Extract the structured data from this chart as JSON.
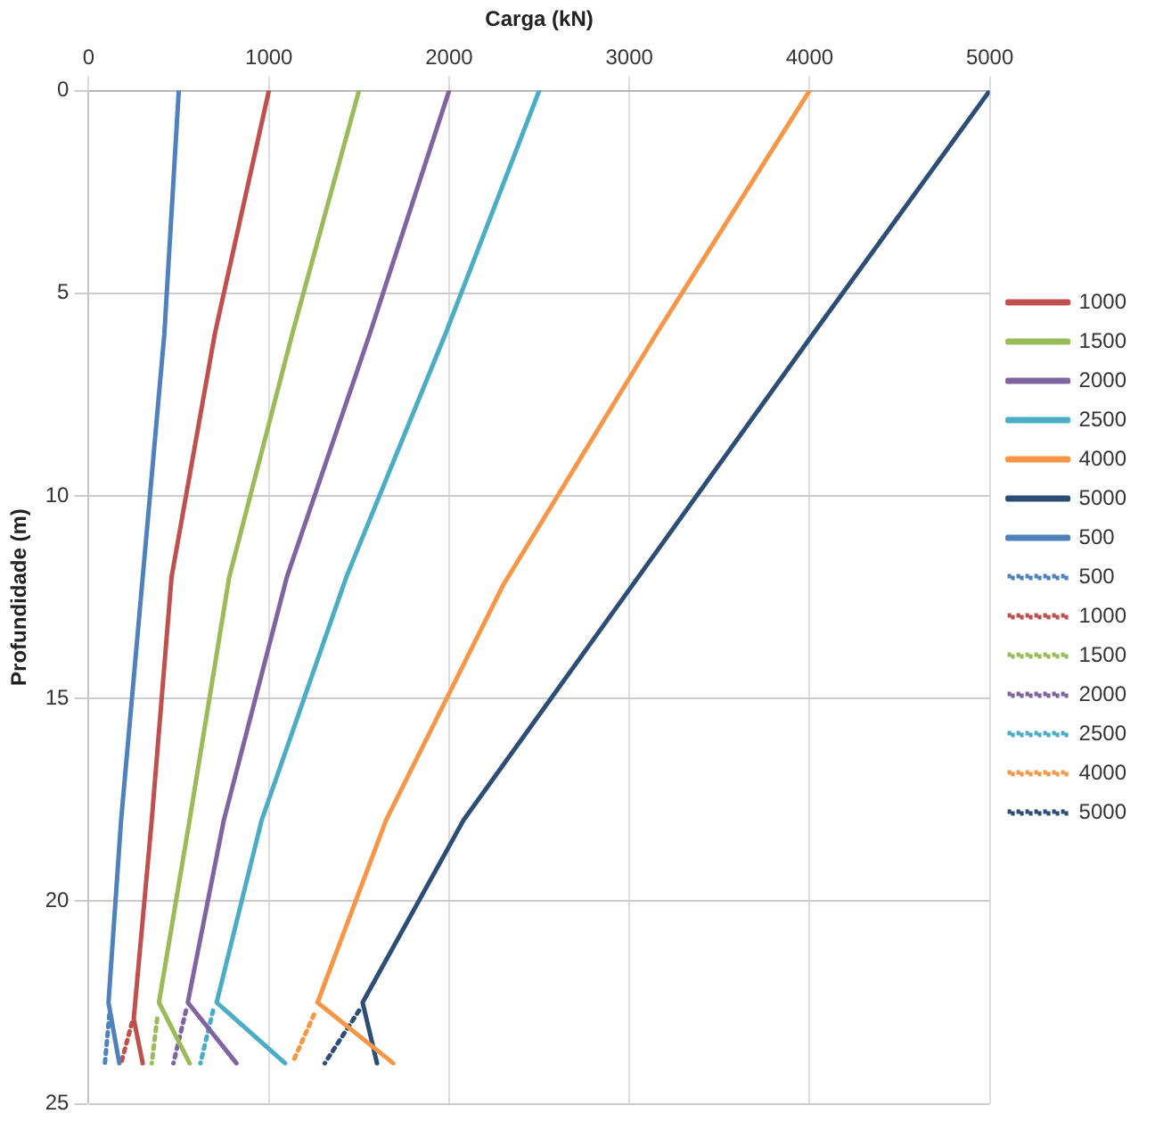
{
  "chart_data": {
    "type": "line",
    "xlabel": "Carga (kN)",
    "ylabel": "Profundidade (m)",
    "xlim": [
      0,
      5000
    ],
    "xticks": [
      0,
      1000,
      2000,
      3000,
      4000,
      5000
    ],
    "ylim": [
      25,
      0
    ],
    "yticks": [
      0,
      5,
      10,
      15,
      20,
      25
    ],
    "grid": true,
    "legend": "right",
    "marker": "none",
    "series": [
      {
        "name": "1000",
        "color": "#c0504d",
        "line_style": "solid",
        "x": [
          1000,
          700,
          460,
          350,
          250,
          300
        ],
        "values": [
          0,
          6,
          12,
          18,
          22.9,
          24
        ]
      },
      {
        "name": "1500",
        "color": "#9bbb59",
        "line_style": "solid",
        "x": [
          1500,
          1130,
          780,
          560,
          390,
          560
        ],
        "values": [
          0,
          6,
          12,
          18,
          22.5,
          24
        ]
      },
      {
        "name": "2000",
        "color": "#8064a2",
        "line_style": "solid",
        "x": [
          2000,
          1560,
          1100,
          750,
          550,
          820
        ],
        "values": [
          0,
          6,
          12,
          18,
          22.5,
          24
        ]
      },
      {
        "name": "2500",
        "color": "#4bacc6",
        "line_style": "solid",
        "x": [
          2500,
          1980,
          1430,
          960,
          710,
          1090
        ],
        "values": [
          0,
          6,
          12,
          18,
          22.5,
          24
        ]
      },
      {
        "name": "4000",
        "color": "#f79646",
        "line_style": "solid",
        "x": [
          4000,
          3150,
          2300,
          1650,
          1270,
          1690
        ],
        "values": [
          0,
          6,
          12.2,
          18,
          22.5,
          24
        ]
      },
      {
        "name": "5000",
        "color": "#2c4d75",
        "line_style": "solid",
        "x": [
          5000,
          4020,
          3050,
          2080,
          1520,
          1600
        ],
        "values": [
          0,
          6,
          12,
          18,
          22.5,
          24
        ]
      },
      {
        "name": "500",
        "color": "#4f81bd",
        "line_style": "solid",
        "x": [
          500,
          420,
          300,
          180,
          110,
          170
        ],
        "values": [
          0,
          6,
          12,
          18,
          22.5,
          24
        ]
      },
      {
        "name": "500",
        "color": "#4f81bd",
        "line_style": "dotted",
        "x": [
          115,
          90
        ],
        "values": [
          22.8,
          24
        ]
      },
      {
        "name": "1000",
        "color": "#c0504d",
        "line_style": "dotted",
        "x": [
          240,
          180
        ],
        "values": [
          23,
          24
        ]
      },
      {
        "name": "1500",
        "color": "#9bbb59",
        "line_style": "dotted",
        "x": [
          380,
          350
        ],
        "values": [
          22.9,
          24
        ]
      },
      {
        "name": "2000",
        "color": "#8064a2",
        "line_style": "dotted",
        "x": [
          540,
          470
        ],
        "values": [
          22.7,
          24
        ]
      },
      {
        "name": "2500",
        "color": "#4bacc6",
        "line_style": "dotted",
        "x": [
          690,
          620
        ],
        "values": [
          22.7,
          24
        ]
      },
      {
        "name": "4000",
        "color": "#f79646",
        "line_style": "dotted",
        "x": [
          1250,
          1130
        ],
        "values": [
          22.8,
          24
        ]
      },
      {
        "name": "5000",
        "color": "#2c4d75",
        "line_style": "dotted",
        "x": [
          1500,
          1310
        ],
        "values": [
          22.7,
          24
        ]
      }
    ]
  }
}
